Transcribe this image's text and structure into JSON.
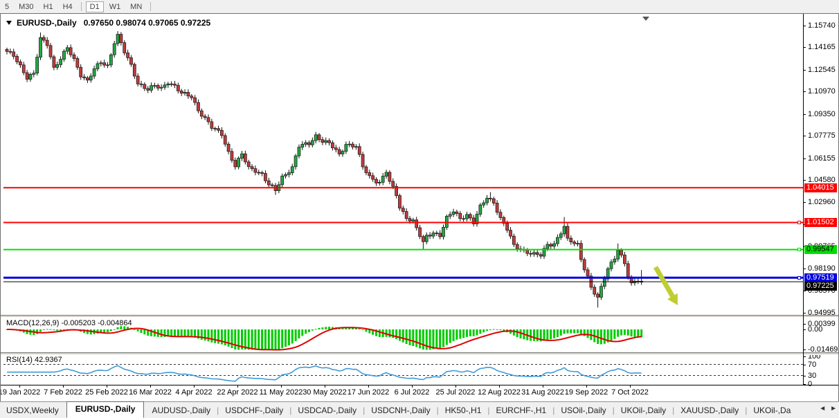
{
  "toolbar": {
    "timeframes": [
      {
        "label": "5",
        "active": false
      },
      {
        "label": "M30",
        "active": false
      },
      {
        "label": "H1",
        "active": false
      },
      {
        "label": "H4",
        "active": false
      },
      {
        "sep": true
      },
      {
        "label": "D1",
        "active": true
      },
      {
        "label": "W1",
        "active": false
      },
      {
        "label": "MN",
        "active": false
      },
      {
        "sep": true
      }
    ]
  },
  "chart_data": {
    "type": "candlestick",
    "title_symbol": "EURUSD-,Daily",
    "title_ohlc": "0.97650 0.98074 0.97065 0.97225",
    "ohlc_current": {
      "open": 0.9765,
      "high": 0.98074,
      "low": 0.97065,
      "close": 0.97225
    },
    "x_labels": [
      "19 Jan 2022",
      "7 Feb 2022",
      "25 Feb 2022",
      "16 Mar 2022",
      "4 Apr 2022",
      "22 Apr 2022",
      "11 May 2022",
      "30 May 2022",
      "17 Jun 2022",
      "6 Jul 2022",
      "25 Jul 2022",
      "12 Aug 2022",
      "31 Aug 2022",
      "19 Sep 2022",
      "7 Oct 2022"
    ],
    "y_ticks": [
      1.1574,
      1.14165,
      1.12545,
      1.1097,
      1.0935,
      1.07775,
      1.06155,
      1.0458,
      1.0296,
      1.01385,
      0.99765,
      0.9819,
      0.9657,
      0.94995
    ],
    "bars_total": 190,
    "close_path_anchors": [
      [
        0,
        1.138
      ],
      [
        2,
        1.136
      ],
      [
        4,
        1.1285
      ],
      [
        6,
        1.1195
      ],
      [
        8,
        1.122
      ],
      [
        10,
        1.148
      ],
      [
        12,
        1.1445
      ],
      [
        14,
        1.1265
      ],
      [
        16,
        1.133
      ],
      [
        18,
        1.141
      ],
      [
        20,
        1.133
      ],
      [
        22,
        1.122
      ],
      [
        24,
        1.117
      ],
      [
        26,
        1.1255
      ],
      [
        28,
        1.131
      ],
      [
        30,
        1.1285
      ],
      [
        32,
        1.1455
      ],
      [
        33,
        1.15
      ],
      [
        35,
        1.138
      ],
      [
        37,
        1.1285
      ],
      [
        39,
        1.116
      ],
      [
        42,
        1.111
      ],
      [
        44,
        1.1135
      ],
      [
        46,
        1.112
      ],
      [
        48,
        1.117
      ],
      [
        50,
        1.1135
      ],
      [
        52,
        1.108
      ],
      [
        55,
        1.106
      ],
      [
        57,
        1.0965
      ],
      [
        60,
        1.087
      ],
      [
        61,
        1.0835
      ],
      [
        64,
        1.079
      ],
      [
        66,
        1.066
      ],
      [
        68,
        1.056
      ],
      [
        70,
        1.064
      ],
      [
        72,
        1.0545
      ],
      [
        74,
        1.053
      ],
      [
        76,
        1.05
      ],
      [
        78,
        1.042
      ],
      [
        80,
        1.038
      ],
      [
        82,
        1.048
      ],
      [
        85,
        1.055
      ],
      [
        87,
        1.07
      ],
      [
        90,
        1.072
      ],
      [
        92,
        1.078
      ],
      [
        94,
        1.074
      ],
      [
        96,
        1.072
      ],
      [
        99,
        1.064
      ],
      [
        101,
        1.072
      ],
      [
        104,
        1.07
      ],
      [
        106,
        1.055
      ],
      [
        108,
        1.048
      ],
      [
        111,
        1.044
      ],
      [
        113,
        1.052
      ],
      [
        114,
        1.044
      ],
      [
        116,
        1.035
      ],
      [
        117,
        1.026
      ],
      [
        119,
        1.019
      ],
      [
        121,
        1.016
      ],
      [
        124,
        1.0
      ],
      [
        125,
        1.005
      ],
      [
        127,
        1.008
      ],
      [
        129,
        1.006
      ],
      [
        131,
        1.018
      ],
      [
        133,
        1.023
      ],
      [
        135,
        1.018
      ],
      [
        137,
        1.021
      ],
      [
        139,
        1.015
      ],
      [
        141,
        1.026
      ],
      [
        143,
        1.033
      ],
      [
        145,
        1.03
      ],
      [
        147,
        1.018
      ],
      [
        149,
        1.01
      ],
      [
        151,
        0.998
      ],
      [
        153,
        0.996
      ],
      [
        155,
        0.994
      ],
      [
        157,
        0.992
      ],
      [
        159,
        0.991
      ],
      [
        161,
        0.999
      ],
      [
        163,
        1.0
      ],
      [
        166,
        1.012
      ],
      [
        167,
        1.002
      ],
      [
        170,
        0.999
      ],
      [
        171,
        0.989
      ],
      [
        173,
        0.976
      ],
      [
        174,
        0.968
      ],
      [
        176,
        0.96
      ],
      [
        178,
        0.975
      ],
      [
        179,
        0.982
      ],
      [
        181,
        0.99
      ],
      [
        182,
        0.996
      ],
      [
        184,
        0.985
      ],
      [
        185,
        0.976
      ],
      [
        186,
        0.97
      ],
      [
        188,
        0.974
      ],
      [
        189,
        0.9722
      ]
    ],
    "extremes": [
      {
        "i": 10,
        "high": 1.1523
      },
      {
        "i": 33,
        "high": 1.1508
      },
      {
        "i": 80,
        "low": 1.035
      },
      {
        "i": 124,
        "low": 0.9952
      },
      {
        "i": 144,
        "high": 1.037
      },
      {
        "i": 166,
        "high": 1.019
      },
      {
        "i": 176,
        "low": 0.9536
      },
      {
        "i": 182,
        "high": 0.9999
      },
      {
        "i": 189,
        "high": 0.98074,
        "low": 0.97065
      }
    ],
    "levels": [
      {
        "price": 1.04015,
        "color": "#ff0000",
        "width": 2,
        "label_bg": "#ff0000",
        "label_fg": "#ffffff",
        "marker": false
      },
      {
        "price": 1.01502,
        "color": "#ff0000",
        "width": 2,
        "label_bg": "#ff0000",
        "label_fg": "#ffffff",
        "marker": true
      },
      {
        "price": 0.99547,
        "color": "#00e000",
        "width": 2,
        "label_bg": "#00dd00",
        "label_fg": "#000000",
        "marker": true
      },
      {
        "price": 0.97519,
        "color": "#0000e0",
        "width": 3,
        "label_bg": "#0000dd",
        "label_fg": "#ffffff",
        "marker": true
      },
      {
        "price": 0.97225,
        "color": "#000000",
        "width": 1,
        "label_bg": "#000000",
        "label_fg": "#ffffff",
        "marker": false,
        "label_offset": 6
      }
    ],
    "candle_up_color": "#23a843",
    "candle_down_color": "#c23b3b",
    "candle_stroke": "#1a1a1a",
    "indicators": {
      "macd": {
        "label": "MACD(12,26,9) -0.005203 -0.004864",
        "params": "12,26,9",
        "main_value": -0.005203,
        "signal_value": -0.004864,
        "axis_labels": [
          {
            "text": "0.00399",
            "value": 0.00399
          },
          {
            "text": "0.00",
            "value": 0
          },
          {
            "text": "-0.014693",
            "value": -0.014693
          }
        ],
        "histogram_color": "#00cc00",
        "signal_color": "#e00000"
      },
      "rsi": {
        "label": "RSI(14) 42.9367",
        "period": 14,
        "value": 42.9367,
        "axis_levels": [
          100,
          70,
          30,
          0
        ],
        "dashed_levels": [
          70,
          30
        ],
        "line_color": "#3e9bd8"
      }
    },
    "annotations": [
      {
        "type": "arrow",
        "from": [
          947,
          386
        ],
        "to": [
          979,
          441
        ],
        "color": "#bfce33"
      }
    ]
  },
  "tabs": {
    "items": [
      {
        "label": "USDX,Weekly",
        "active": false
      },
      {
        "label": "EURUSD-,Daily",
        "active": true
      },
      {
        "label": "AUDUSD-,Daily",
        "active": false
      },
      {
        "label": "USDCHF-,Daily",
        "active": false
      },
      {
        "label": "USDCAD-,Daily",
        "active": false
      },
      {
        "label": "USDCNH-,Daily",
        "active": false
      },
      {
        "label": "HK50-,H1",
        "active": false
      },
      {
        "label": "EURCHF-,H1",
        "active": false
      },
      {
        "label": "USOil-,Daily",
        "active": false
      },
      {
        "label": "UKOil-,Daily",
        "active": false
      },
      {
        "label": "XAUUSD-,Daily",
        "active": false
      },
      {
        "label": "UKOil-,Da",
        "active": false
      }
    ],
    "nav_left": "◄",
    "nav_right": "►"
  }
}
